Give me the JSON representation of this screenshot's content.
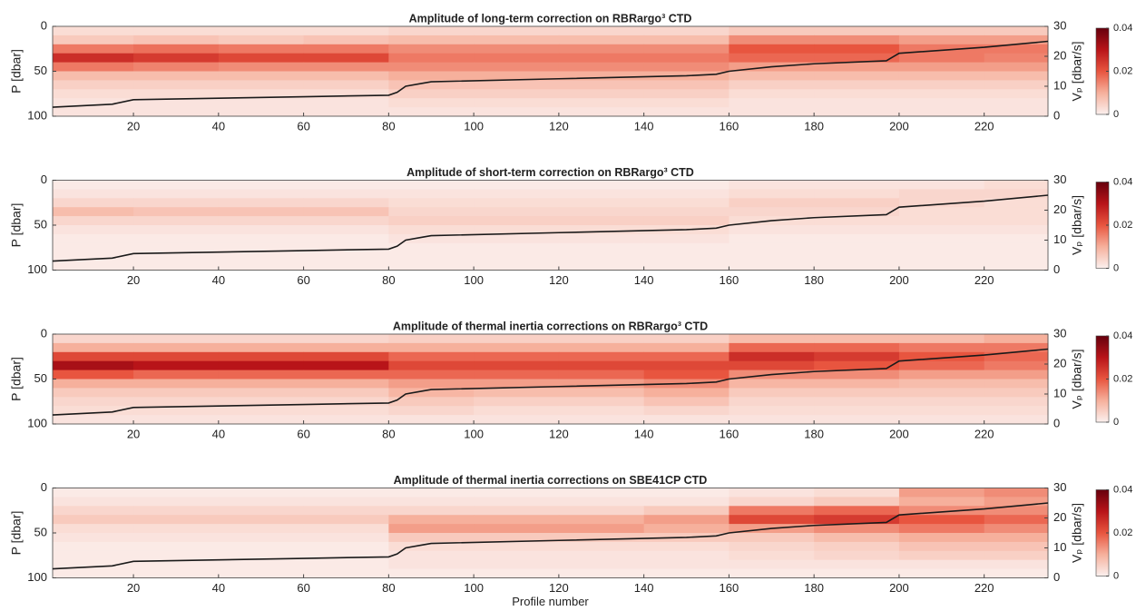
{
  "chart_data": [
    {
      "type": "heatmap",
      "title": "Amplitude of long-term correction on RBRargo³ CTD",
      "ylabel": "P [dbar]",
      "y2label": "Vₚ [dbar/s]",
      "xbins": [
        1,
        20,
        40,
        60,
        80,
        100,
        120,
        140,
        160,
        180,
        200,
        220,
        235
      ],
      "ybins": [
        0,
        10,
        20,
        30,
        40,
        50,
        60,
        70,
        80,
        90,
        100
      ],
      "values": [
        [
          0.003,
          0.003,
          0.003,
          0.003,
          0.004,
          0.004,
          0.004,
          0.004,
          0.006,
          0.006,
          0.006,
          0.006
        ],
        [
          0.006,
          0.007,
          0.006,
          0.007,
          0.008,
          0.008,
          0.008,
          0.008,
          0.014,
          0.014,
          0.012,
          0.012
        ],
        [
          0.016,
          0.017,
          0.016,
          0.016,
          0.014,
          0.014,
          0.014,
          0.014,
          0.02,
          0.02,
          0.016,
          0.016
        ],
        [
          0.026,
          0.024,
          0.022,
          0.022,
          0.016,
          0.016,
          0.016,
          0.016,
          0.018,
          0.018,
          0.016,
          0.015
        ],
        [
          0.016,
          0.015,
          0.014,
          0.014,
          0.014,
          0.014,
          0.014,
          0.014,
          0.012,
          0.012,
          0.012,
          0.012
        ],
        [
          0.008,
          0.008,
          0.008,
          0.008,
          0.01,
          0.01,
          0.01,
          0.01,
          0.008,
          0.008,
          0.008,
          0.008
        ],
        [
          0.005,
          0.005,
          0.005,
          0.005,
          0.007,
          0.007,
          0.007,
          0.007,
          0.005,
          0.005,
          0.005,
          0.005
        ],
        [
          0.003,
          0.003,
          0.003,
          0.003,
          0.005,
          0.005,
          0.005,
          0.005,
          0.003,
          0.003,
          0.003,
          0.003
        ],
        [
          0.002,
          0.002,
          0.002,
          0.002,
          0.003,
          0.003,
          0.003,
          0.003,
          0.002,
          0.002,
          0.002,
          0.002
        ],
        [
          0.002,
          0.002,
          0.002,
          0.002,
          0.002,
          0.002,
          0.002,
          0.002,
          0.002,
          0.002,
          0.002,
          0.002
        ]
      ],
      "clim": [
        0,
        0.04
      ],
      "cticks": [
        0,
        0.02,
        0.04
      ],
      "xlim": [
        1,
        235
      ],
      "xticks": [
        20,
        40,
        60,
        80,
        100,
        120,
        140,
        160,
        180,
        200,
        220
      ],
      "ylim": [
        0,
        100
      ],
      "y_reversed": true,
      "yticks": [
        0,
        50,
        100
      ],
      "y2lim": [
        0,
        30
      ],
      "y2ticks": [
        0,
        10,
        20,
        30
      ],
      "series": [
        {
          "color": "#1a1a1a",
          "axis": "y2",
          "x": [
            1,
            15,
            20,
            40,
            60,
            80,
            82,
            84,
            88,
            90,
            120,
            150,
            157,
            160,
            170,
            180,
            197,
            200,
            220,
            235
          ],
          "values": [
            3,
            4,
            5.5,
            6,
            6.5,
            7,
            8,
            10,
            11,
            11.5,
            12.5,
            13.5,
            14,
            15,
            16.5,
            17.5,
            18.5,
            21,
            23,
            25
          ]
        }
      ]
    },
    {
      "type": "heatmap",
      "title": "Amplitude of short-term correction on RBRargo³ CTD",
      "ylabel": "P [dbar]",
      "y2label": "Vₚ [dbar/s]",
      "xbins": [
        1,
        20,
        40,
        60,
        80,
        100,
        120,
        140,
        160,
        180,
        200,
        220,
        235
      ],
      "ybins": [
        0,
        10,
        20,
        30,
        40,
        50,
        60,
        70,
        80,
        90,
        100
      ],
      "values": [
        [
          0.001,
          0.001,
          0.001,
          0.001,
          0.001,
          0.001,
          0.001,
          0.001,
          0.002,
          0.002,
          0.002,
          0.003
        ],
        [
          0.002,
          0.002,
          0.002,
          0.002,
          0.002,
          0.002,
          0.002,
          0.002,
          0.003,
          0.003,
          0.004,
          0.004
        ],
        [
          0.004,
          0.004,
          0.004,
          0.004,
          0.003,
          0.003,
          0.003,
          0.003,
          0.005,
          0.005,
          0.004,
          0.003
        ],
        [
          0.008,
          0.007,
          0.007,
          0.007,
          0.004,
          0.004,
          0.004,
          0.004,
          0.004,
          0.004,
          0.003,
          0.003
        ],
        [
          0.004,
          0.004,
          0.004,
          0.004,
          0.005,
          0.005,
          0.005,
          0.005,
          0.003,
          0.003,
          0.003,
          0.003
        ],
        [
          0.002,
          0.002,
          0.002,
          0.002,
          0.003,
          0.003,
          0.003,
          0.003,
          0.002,
          0.002,
          0.002,
          0.002
        ],
        [
          0.001,
          0.001,
          0.001,
          0.001,
          0.002,
          0.002,
          0.002,
          0.002,
          0.001,
          0.001,
          0.001,
          0.001
        ],
        [
          0.001,
          0.001,
          0.001,
          0.001,
          0.001,
          0.001,
          0.001,
          0.001,
          0.001,
          0.001,
          0.001,
          0.001
        ],
        [
          0.001,
          0.001,
          0.001,
          0.001,
          0.001,
          0.001,
          0.001,
          0.001,
          0.001,
          0.001,
          0.001,
          0.001
        ],
        [
          0.001,
          0.001,
          0.001,
          0.001,
          0.001,
          0.001,
          0.001,
          0.001,
          0.001,
          0.001,
          0.001,
          0.001
        ]
      ],
      "clim": [
        0,
        0.04
      ],
      "cticks": [
        0,
        0.02,
        0.04
      ],
      "xlim": [
        1,
        235
      ],
      "xticks": [
        20,
        40,
        60,
        80,
        100,
        120,
        140,
        160,
        180,
        200,
        220
      ],
      "ylim": [
        0,
        100
      ],
      "y_reversed": true,
      "yticks": [
        0,
        50,
        100
      ],
      "y2lim": [
        0,
        30
      ],
      "y2ticks": [
        0,
        10,
        20,
        30
      ],
      "series": [
        {
          "color": "#1a1a1a",
          "axis": "y2",
          "x": [
            1,
            15,
            20,
            40,
            60,
            80,
            82,
            84,
            88,
            90,
            120,
            150,
            157,
            160,
            170,
            180,
            197,
            200,
            220,
            235
          ],
          "values": [
            3,
            4,
            5.5,
            6,
            6.5,
            7,
            8,
            10,
            11,
            11.5,
            12.5,
            13.5,
            14,
            15,
            16.5,
            17.5,
            18.5,
            21,
            23,
            25
          ]
        }
      ]
    },
    {
      "type": "heatmap",
      "title": "Amplitude of thermal inertia corrections on RBRargo³ CTD",
      "ylabel": "P [dbar]",
      "y2label": "Vₚ [dbar/s]",
      "xbins": [
        1,
        20,
        40,
        60,
        80,
        100,
        120,
        140,
        160,
        180,
        200,
        220,
        235
      ],
      "ybins": [
        0,
        10,
        20,
        30,
        40,
        50,
        60,
        70,
        80,
        90,
        100
      ],
      "values": [
        [
          0.004,
          0.004,
          0.004,
          0.004,
          0.005,
          0.005,
          0.005,
          0.005,
          0.008,
          0.008,
          0.008,
          0.01
        ],
        [
          0.01,
          0.01,
          0.01,
          0.01,
          0.01,
          0.01,
          0.01,
          0.01,
          0.018,
          0.018,
          0.016,
          0.016
        ],
        [
          0.022,
          0.022,
          0.022,
          0.022,
          0.018,
          0.018,
          0.018,
          0.018,
          0.026,
          0.024,
          0.02,
          0.018
        ],
        [
          0.032,
          0.03,
          0.03,
          0.03,
          0.022,
          0.022,
          0.022,
          0.022,
          0.022,
          0.02,
          0.018,
          0.016
        ],
        [
          0.02,
          0.018,
          0.018,
          0.018,
          0.018,
          0.018,
          0.018,
          0.02,
          0.014,
          0.014,
          0.012,
          0.012
        ],
        [
          0.01,
          0.01,
          0.01,
          0.01,
          0.012,
          0.012,
          0.012,
          0.014,
          0.009,
          0.009,
          0.008,
          0.008
        ],
        [
          0.006,
          0.006,
          0.006,
          0.006,
          0.009,
          0.008,
          0.008,
          0.01,
          0.006,
          0.006,
          0.006,
          0.006
        ],
        [
          0.004,
          0.004,
          0.004,
          0.004,
          0.006,
          0.005,
          0.005,
          0.007,
          0.004,
          0.004,
          0.004,
          0.004
        ],
        [
          0.003,
          0.003,
          0.003,
          0.003,
          0.004,
          0.003,
          0.003,
          0.004,
          0.003,
          0.003,
          0.003,
          0.003
        ],
        [
          0.002,
          0.002,
          0.002,
          0.002,
          0.002,
          0.002,
          0.002,
          0.002,
          0.002,
          0.002,
          0.002,
          0.002
        ]
      ],
      "clim": [
        0,
        0.04
      ],
      "cticks": [
        0,
        0.02,
        0.04
      ],
      "xlim": [
        1,
        235
      ],
      "xticks": [
        20,
        40,
        60,
        80,
        100,
        120,
        140,
        160,
        180,
        200,
        220
      ],
      "ylim": [
        0,
        100
      ],
      "y_reversed": true,
      "yticks": [
        0,
        50,
        100
      ],
      "y2lim": [
        0,
        30
      ],
      "y2ticks": [
        0,
        10,
        20,
        30
      ],
      "series": [
        {
          "color": "#1a1a1a",
          "axis": "y2",
          "x": [
            1,
            15,
            20,
            40,
            60,
            80,
            82,
            84,
            88,
            90,
            120,
            150,
            157,
            160,
            170,
            180,
            197,
            200,
            220,
            235
          ],
          "values": [
            3,
            4,
            5.5,
            6,
            6.5,
            7,
            8,
            10,
            11,
            11.5,
            12.5,
            13.5,
            14,
            15,
            16.5,
            17.5,
            18.5,
            21,
            23,
            25
          ]
        }
      ]
    },
    {
      "type": "heatmap",
      "title": "Amplitude of thermal inertia corrections on SBE41CP CTD",
      "ylabel": "P [dbar]",
      "y2label": "Vₚ [dbar/s]",
      "xlabel": "Profile number",
      "xbins": [
        1,
        20,
        40,
        60,
        80,
        100,
        120,
        140,
        160,
        180,
        200,
        220,
        235
      ],
      "ybins": [
        0,
        10,
        20,
        30,
        40,
        50,
        60,
        70,
        80,
        90,
        100
      ],
      "values": [
        [
          0.001,
          0.001,
          0.001,
          0.001,
          0.001,
          0.001,
          0.001,
          0.001,
          0.002,
          0.003,
          0.012,
          0.014
        ],
        [
          0.002,
          0.002,
          0.002,
          0.002,
          0.002,
          0.002,
          0.002,
          0.002,
          0.004,
          0.006,
          0.01,
          0.012
        ],
        [
          0.004,
          0.004,
          0.004,
          0.004,
          0.004,
          0.004,
          0.004,
          0.006,
          0.016,
          0.018,
          0.014,
          0.014
        ],
        [
          0.006,
          0.006,
          0.006,
          0.006,
          0.01,
          0.01,
          0.01,
          0.012,
          0.022,
          0.024,
          0.02,
          0.018
        ],
        [
          0.003,
          0.003,
          0.003,
          0.003,
          0.012,
          0.012,
          0.012,
          0.01,
          0.012,
          0.014,
          0.016,
          0.014
        ],
        [
          0.002,
          0.002,
          0.002,
          0.002,
          0.006,
          0.006,
          0.006,
          0.006,
          0.006,
          0.008,
          0.01,
          0.01
        ],
        [
          0.001,
          0.001,
          0.001,
          0.001,
          0.003,
          0.003,
          0.003,
          0.003,
          0.004,
          0.005,
          0.007,
          0.007
        ],
        [
          0.001,
          0.001,
          0.001,
          0.001,
          0.002,
          0.002,
          0.002,
          0.002,
          0.003,
          0.004,
          0.005,
          0.005
        ],
        [
          0.001,
          0.001,
          0.001,
          0.001,
          0.002,
          0.002,
          0.002,
          0.002,
          0.002,
          0.002,
          0.002,
          0.002
        ],
        [
          0.001,
          0.001,
          0.001,
          0.001,
          0.001,
          0.001,
          0.001,
          0.001,
          0.001,
          0.001,
          0.001,
          0.001
        ]
      ],
      "clim": [
        0,
        0.04
      ],
      "cticks": [
        0,
        0.02,
        0.04
      ],
      "xlim": [
        1,
        235
      ],
      "xticks": [
        20,
        40,
        60,
        80,
        100,
        120,
        140,
        160,
        180,
        200,
        220
      ],
      "ylim": [
        0,
        100
      ],
      "y_reversed": true,
      "yticks": [
        0,
        50,
        100
      ],
      "y2lim": [
        0,
        30
      ],
      "y2ticks": [
        0,
        10,
        20,
        30
      ],
      "series": [
        {
          "color": "#1a1a1a",
          "axis": "y2",
          "x": [
            1,
            15,
            20,
            40,
            60,
            80,
            82,
            84,
            88,
            90,
            120,
            150,
            157,
            160,
            170,
            180,
            197,
            200,
            220,
            235
          ],
          "values": [
            3,
            4,
            5.5,
            6,
            6.5,
            7,
            8,
            10,
            11,
            11.5,
            12.5,
            13.5,
            14,
            15,
            16.5,
            17.5,
            18.5,
            21,
            23,
            25
          ]
        }
      ]
    }
  ]
}
